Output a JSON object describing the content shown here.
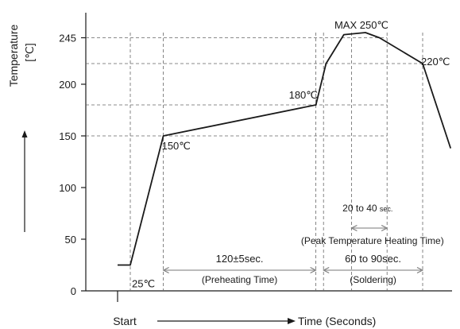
{
  "chart_data": {
    "type": "line",
    "ylabel": "Temperature",
    "yunit": "[℃]",
    "xlabel_start": "Start",
    "xlabel_end": "Time (Seconds)",
    "yticks": [
      0,
      50,
      100,
      150,
      200,
      245
    ],
    "ylim": [
      0,
      255
    ],
    "grid": "dashed reference lines",
    "profile": [
      {
        "x": 0,
        "y": 25
      },
      {
        "x": 10,
        "y": 25
      },
      {
        "x": 36,
        "y": 150
      },
      {
        "x": 156,
        "y": 180
      },
      {
        "x": 164,
        "y": 220
      },
      {
        "x": 178,
        "y": 248
      },
      {
        "x": 195,
        "y": 250
      },
      {
        "x": 206,
        "y": 245
      },
      {
        "x": 240,
        "y": 220
      },
      {
        "x": 262,
        "y": 138
      }
    ],
    "point_labels": [
      {
        "text": "25℃",
        "x": 10,
        "y": 25
      },
      {
        "text": "150℃",
        "x": 36,
        "y": 150
      },
      {
        "text": "180℃",
        "x": 156,
        "y": 180
      },
      {
        "text": "MAX 250℃",
        "x": 195,
        "y": 250
      },
      {
        "text": "220℃",
        "x": 240,
        "y": 220
      }
    ],
    "intervals": [
      {
        "label": "120±5sec.",
        "sublabel": "(Preheating Time)",
        "from": 36,
        "to": 156
      },
      {
        "label": "60 to 90sec.",
        "sublabel": "(Soldering)",
        "from": 162,
        "to": 240
      },
      {
        "label": "20 to 40",
        "label_suffix": "sec.",
        "sublabel": "(Peak Temperature Heating Time)",
        "from": 184,
        "to": 212
      }
    ]
  }
}
